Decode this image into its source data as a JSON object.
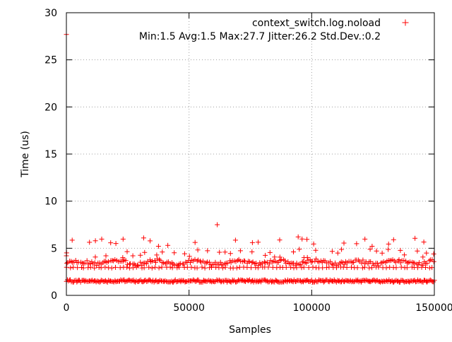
{
  "chart_data": {
    "type": "scatter",
    "title": "",
    "xlabel": "Samples",
    "ylabel": "Time (us)",
    "xlim": [
      0,
      150000
    ],
    "ylim": [
      0,
      30
    ],
    "x_ticks": [
      0,
      50000,
      100000,
      150000
    ],
    "y_ticks": [
      0,
      5,
      10,
      15,
      20,
      25,
      30
    ],
    "x_tick_labels": [
      "0",
      "50000",
      "100000",
      "150000"
    ],
    "y_tick_labels": [
      "0",
      "5",
      "10",
      "15",
      "20",
      "25",
      "30"
    ],
    "grid": true,
    "legend_position": "top-right",
    "series": [
      {
        "name": "context_switch.log.noload",
        "color": "#ff0000",
        "marker": "plus",
        "stats_label": "Min:1.5 Avg:1.5 Max:27.7 Jitter:26.2 Std.Dev.:0.2",
        "notable_points": [
          {
            "x": 0,
            "y": 27.7
          },
          {
            "x": 61500,
            "y": 7.5
          },
          {
            "x": 31500,
            "y": 6.1
          },
          {
            "x": 94500,
            "y": 6.2
          },
          {
            "x": 0,
            "y": 4.2
          }
        ],
        "bands": [
          {
            "y_min": 1.4,
            "y_max": 1.65,
            "x_step": 420,
            "pattern": "dense"
          },
          {
            "y_min": 2.9,
            "y_max": 3.0,
            "x_step": 1450,
            "pattern": "row"
          },
          {
            "y_min": 3.1,
            "y_max": 3.9,
            "x_step": 640,
            "pattern": "wave"
          },
          {
            "y_min": 4.0,
            "y_max": 4.9,
            "x_step": 2300,
            "pattern": "sparse"
          },
          {
            "y_min": 5.2,
            "y_max": 6.1,
            "x_step": 2900,
            "pattern": "sparse"
          }
        ]
      }
    ]
  }
}
